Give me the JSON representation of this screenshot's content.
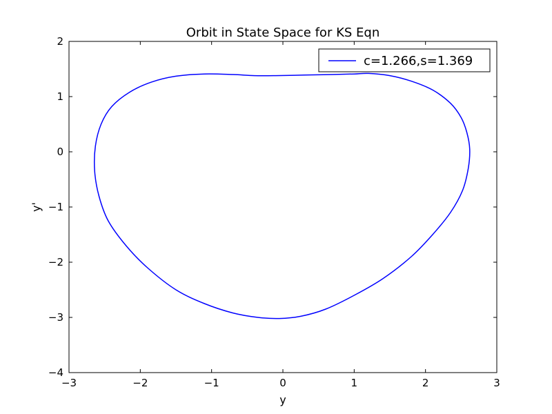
{
  "chart_data": {
    "type": "line",
    "title": "Orbit in State Space for KS Eqn",
    "xlabel": "y",
    "ylabel": "y'",
    "xlim": [
      -3,
      3
    ],
    "ylim": [
      -4,
      2
    ],
    "xticks": [
      -3,
      -2,
      -1,
      0,
      1,
      2,
      3
    ],
    "yticks": [
      -4,
      -3,
      -2,
      -1,
      0,
      1,
      2
    ],
    "xtick_labels": [
      "−3",
      "−2",
      "−1",
      "0",
      "1",
      "2",
      "3"
    ],
    "ytick_labels": [
      "−4",
      "−3",
      "−2",
      "−1",
      "0",
      "1",
      "2"
    ],
    "grid": false,
    "legend": {
      "placement": "top-right"
    },
    "series": [
      {
        "name": "c=1.266,s=1.369",
        "color": "#0000ff",
        "closed": true,
        "points": [
          [
            -0.1,
            1.38
          ],
          [
            0.3,
            1.39
          ],
          [
            0.7,
            1.4
          ],
          [
            1.0,
            1.41
          ],
          [
            1.2,
            1.42
          ],
          [
            1.5,
            1.38
          ],
          [
            1.8,
            1.28
          ],
          [
            2.1,
            1.12
          ],
          [
            2.35,
            0.88
          ],
          [
            2.5,
            0.62
          ],
          [
            2.58,
            0.35
          ],
          [
            2.62,
            0.05
          ],
          [
            2.6,
            -0.3
          ],
          [
            2.52,
            -0.7
          ],
          [
            2.35,
            -1.1
          ],
          [
            2.1,
            -1.5
          ],
          [
            1.8,
            -1.9
          ],
          [
            1.4,
            -2.3
          ],
          [
            1.0,
            -2.6
          ],
          [
            0.6,
            -2.85
          ],
          [
            0.25,
            -2.98
          ],
          [
            -0.05,
            -3.02
          ],
          [
            -0.35,
            -3.0
          ],
          [
            -0.7,
            -2.92
          ],
          [
            -1.1,
            -2.75
          ],
          [
            -1.5,
            -2.5
          ],
          [
            -1.9,
            -2.1
          ],
          [
            -2.2,
            -1.7
          ],
          [
            -2.45,
            -1.25
          ],
          [
            -2.58,
            -0.8
          ],
          [
            -2.64,
            -0.35
          ],
          [
            -2.63,
            0.1
          ],
          [
            -2.55,
            0.5
          ],
          [
            -2.4,
            0.82
          ],
          [
            -2.15,
            1.08
          ],
          [
            -1.85,
            1.26
          ],
          [
            -1.5,
            1.37
          ],
          [
            -1.1,
            1.41
          ],
          [
            -0.7,
            1.4
          ],
          [
            -0.4,
            1.38
          ]
        ]
      }
    ]
  }
}
